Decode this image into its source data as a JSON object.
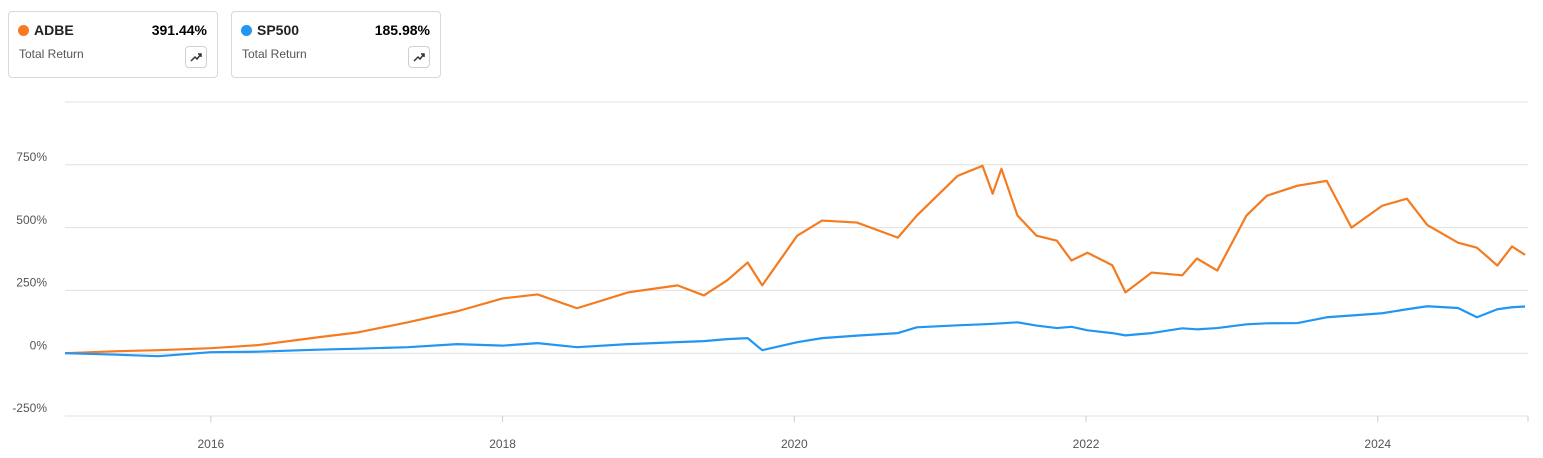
{
  "chart_data": {
    "type": "line",
    "x": [
      2015.0,
      2015.36,
      2015.64,
      2016.0,
      2016.32,
      2016.73,
      2017.01,
      2017.35,
      2017.69,
      2018.0,
      2018.24,
      2018.51,
      2018.86,
      2019.2,
      2019.38,
      2019.54,
      2019.68,
      2019.78,
      2020.02,
      2020.19,
      2020.43,
      2020.71,
      2020.84,
      2021.12,
      2021.29,
      2021.36,
      2021.42,
      2021.53,
      2021.66,
      2021.8,
      2021.9,
      2022.01,
      2022.18,
      2022.27,
      2022.45,
      2022.66,
      2022.76,
      2022.9,
      2023.1,
      2023.24,
      2023.45,
      2023.65,
      2023.82,
      2024.03,
      2024.2,
      2024.34,
      2024.55,
      2024.68,
      2024.82,
      2024.92,
      2025.01
    ],
    "series": [
      {
        "name": "ADBE",
        "color": "#f47b20",
        "metric": "Total Return",
        "total_return": "391.44%",
        "values": [
          0,
          8,
          12,
          20,
          32,
          63,
          83,
          123,
          167,
          218,
          234,
          179,
          242,
          270,
          230,
          290,
          361,
          270,
          468,
          528,
          520,
          460,
          548,
          706,
          746,
          635,
          734,
          548,
          468,
          448,
          369,
          400,
          350,
          242,
          321,
          310,
          377,
          329,
          548,
          627,
          667,
          686,
          500,
          587,
          615,
          510,
          440,
          420,
          349,
          425,
          391.44
        ]
      },
      {
        "name": "SP500",
        "color": "#2196f3",
        "metric": "Total Return",
        "total_return": "185.98%",
        "values": [
          0,
          -6,
          -12,
          4,
          6,
          14,
          18,
          24,
          36,
          30,
          40,
          24,
          36,
          44,
          48,
          56,
          60,
          12,
          44,
          60,
          70,
          80,
          103,
          111,
          115,
          117,
          119,
          123,
          110,
          100,
          105,
          91,
          80,
          71,
          80,
          99,
          95,
          100,
          115,
          119,
          120,
          143,
          150,
          159,
          175,
          187,
          180,
          143,
          175,
          183,
          185.98
        ]
      }
    ],
    "xlim": [
      2015.0,
      2025.03
    ],
    "xticks": [
      2016,
      2018,
      2020,
      2022,
      2024
    ],
    "ylim": [
      -250,
      1000
    ],
    "yticks": [
      {
        "value": -250,
        "label": "-250%"
      },
      {
        "value": 0,
        "label": "0%"
      },
      {
        "value": 250,
        "label": "250%"
      },
      {
        "value": 500,
        "label": "500%"
      },
      {
        "value": 750,
        "label": "750%"
      }
    ],
    "grid": true
  }
}
